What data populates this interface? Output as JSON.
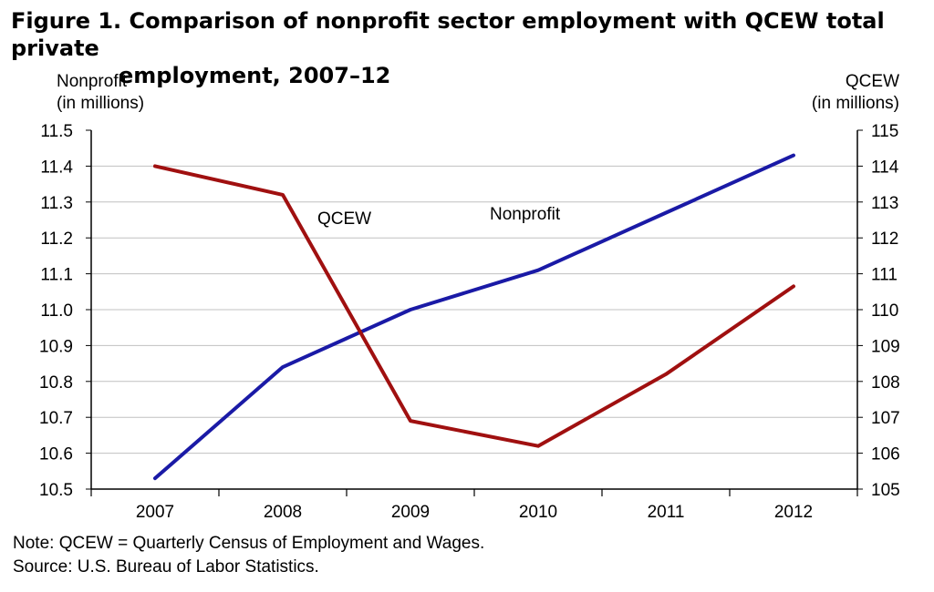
{
  "title_line1": "Figure 1. Comparison of nonprofit sector employment with QCEW total private",
  "title_line2": "employment, 2007–12",
  "left_axis_title_1": "Nonprofit",
  "left_axis_title_2": "(in millions)",
  "right_axis_title_1": "QCEW",
  "right_axis_title_2": "(in millions)",
  "note": "Note: QCEW = Quarterly Census of Employment and Wages.",
  "source": "Source: U.S. Bureau of Labor Statistics.",
  "colors": {
    "nonprofit": "#1a1aa6",
    "qcew": "#a01010",
    "grid": "#c0c0c0",
    "axis": "#000000"
  },
  "chart_data": {
    "type": "line",
    "title": "Figure 1. Comparison of nonprofit sector employment with QCEW total private employment, 2007–12",
    "x": [
      "2007",
      "2008",
      "2009",
      "2010",
      "2011",
      "2012"
    ],
    "series": [
      {
        "name": "Nonprofit",
        "axis": "left",
        "values": [
          10.53,
          10.84,
          11.0,
          11.11,
          11.27,
          11.43
        ]
      },
      {
        "name": "QCEW",
        "axis": "right",
        "values": [
          114.0,
          113.2,
          106.9,
          106.2,
          108.2,
          110.65
        ]
      }
    ],
    "y_left": {
      "label": "Nonprofit (in millions)",
      "range": [
        10.5,
        11.5
      ],
      "ticks": [
        "10.5",
        "10.6",
        "10.7",
        "10.8",
        "10.9",
        "11.0",
        "11.1",
        "11.2",
        "11.3",
        "11.4",
        "11.5"
      ]
    },
    "y_right": {
      "label": "QCEW (in millions)",
      "range": [
        105,
        115
      ],
      "ticks": [
        "105",
        "106",
        "107",
        "108",
        "109",
        "110",
        "111",
        "112",
        "113",
        "114",
        "115"
      ]
    },
    "grid": true,
    "legend": "none"
  }
}
